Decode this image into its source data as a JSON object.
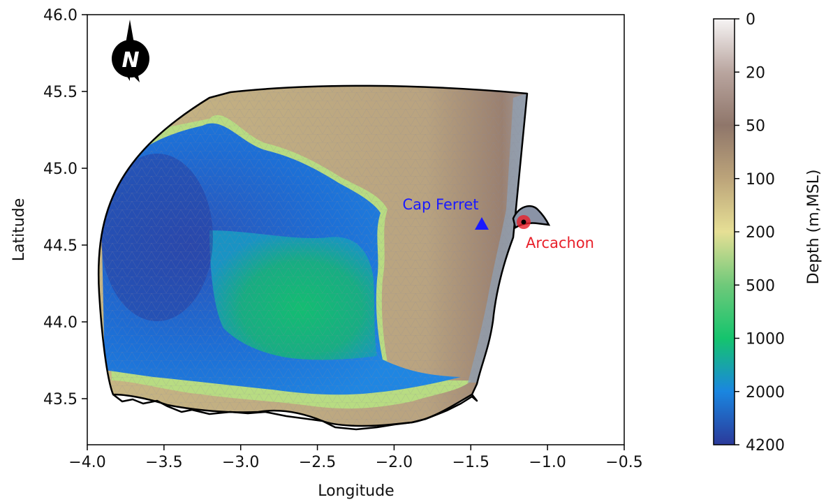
{
  "chart_data": {
    "type": "map",
    "xlabel": "Longitude",
    "ylabel": "Latitude",
    "xlim": [
      -4.0,
      -0.5
    ],
    "ylim": [
      43.2,
      46.0
    ],
    "xticks": [
      -4.0,
      -3.5,
      -3.0,
      -2.5,
      -2.0,
      -1.5,
      -1.0,
      -0.5
    ],
    "xtick_labels": [
      "−4.0",
      "−3.5",
      "−3.0",
      "−2.5",
      "−2.0",
      "−1.5",
      "−1.0",
      "−0.5"
    ],
    "yticks": [
      43.5,
      44.0,
      44.5,
      45.0,
      45.5,
      46.0
    ],
    "ytick_labels": [
      "43.5",
      "44.0",
      "44.5",
      "45.0",
      "45.5",
      "46.0"
    ],
    "north_arrow_label": "N",
    "markers": [
      {
        "label": "Cap Ferret",
        "lon": -1.43,
        "lat": 44.64,
        "shape": "triangle",
        "color": "#1a1aff"
      },
      {
        "label": "Arcachon",
        "lon": -1.17,
        "lat": 44.65,
        "shape": "circle",
        "color": "#e8202a"
      }
    ],
    "colorbar": {
      "label": "Depth (m,MSL)",
      "ticks": [
        "0",
        "20",
        "50",
        "100",
        "200",
        "500",
        "1000",
        "2000",
        "4200"
      ],
      "colors": [
        "#f6f4f4",
        "#b9a59f",
        "#8f766a",
        "#bca47a",
        "#e6df95",
        "#6fc97a",
        "#15c46d",
        "#1a86e0",
        "#2b3a9a"
      ]
    }
  }
}
